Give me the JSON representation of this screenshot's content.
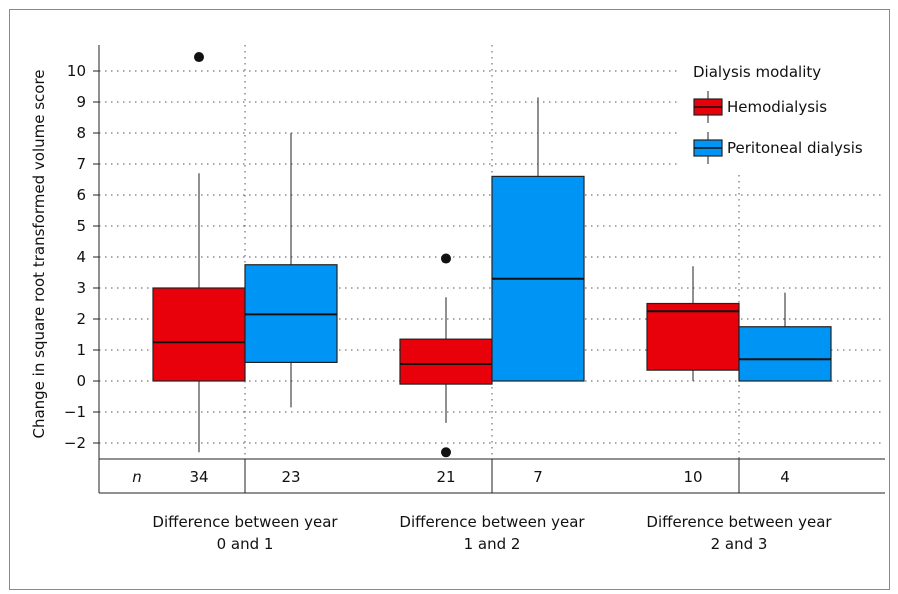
{
  "chart_data": {
    "type": "box",
    "ylabel": "Change in square root transformed volume score",
    "ylim": [
      -2.5,
      10.8
    ],
    "yticks": [
      10,
      9,
      8,
      7,
      6,
      5,
      4,
      3,
      2,
      1,
      0,
      -1,
      -2
    ],
    "grid": true,
    "legend": {
      "title": "Dialysis modality",
      "placement": "top-right",
      "entries": [
        "Hemodialysis",
        "Peritoneal dialysis"
      ]
    },
    "colors": {
      "Hemodialysis": "#e8000b",
      "Peritoneal dialysis": "#0094f5"
    },
    "n_label": "n",
    "groups": [
      {
        "label": [
          "Difference between year",
          "0 and 1"
        ],
        "boxes": [
          {
            "series": "Hemodialysis",
            "n": "34",
            "whisker_low": -2.3,
            "q1": 0,
            "median": 1.25,
            "q3": 3.0,
            "whisker_high": 6.7,
            "outliers": [
              10.45
            ]
          },
          {
            "series": "Peritoneal dialysis",
            "n": "23",
            "whisker_low": -0.85,
            "q1": 0.6,
            "median": 2.15,
            "q3": 3.75,
            "whisker_high": 8.0,
            "outliers": []
          }
        ]
      },
      {
        "label": [
          "Difference between year",
          "1 and 2"
        ],
        "boxes": [
          {
            "series": "Hemodialysis",
            "n": "21",
            "whisker_low": -1.35,
            "q1": -0.1,
            "median": 0.55,
            "q3": 1.35,
            "whisker_high": 2.7,
            "outliers": [
              3.95,
              -2.3
            ]
          },
          {
            "series": "Peritoneal dialysis",
            "n": "7",
            "whisker_low": 0,
            "q1": 0,
            "median": 3.3,
            "q3": 6.6,
            "whisker_high": 9.15,
            "outliers": []
          }
        ]
      },
      {
        "label": [
          "Difference between year",
          "2 and 3"
        ],
        "boxes": [
          {
            "series": "Hemodialysis",
            "n": "10",
            "whisker_low": 0,
            "q1": 0.35,
            "median": 2.25,
            "q3": 2.5,
            "whisker_high": 3.7,
            "outliers": []
          },
          {
            "series": "Peritoneal dialysis",
            "n": "4",
            "whisker_low": 0,
            "q1": 0,
            "median": 0.7,
            "q3": 1.75,
            "whisker_high": 2.85,
            "outliers": []
          }
        ]
      }
    ]
  }
}
